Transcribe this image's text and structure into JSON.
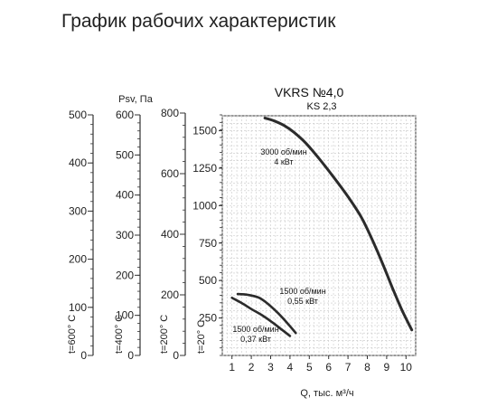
{
  "page": {
    "title": "График рабочих характеристик"
  },
  "chart_data": {
    "type": "line",
    "title": "VKRS №4,0",
    "subtitle": "KS 2,3",
    "xlabel": "Q, тыс. м³/ч",
    "ylabel": "Psv, Па",
    "xlim": [
      0.5,
      10.5
    ],
    "ylim": [
      0,
      1600
    ],
    "x_ticks": [
      1,
      2,
      3,
      4,
      5,
      6,
      7,
      8,
      9,
      10
    ],
    "y_ticks": [
      0,
      250,
      500,
      750,
      1000,
      1250,
      1500
    ],
    "grid": true,
    "series": [
      {
        "name": "3000 об/мин 4 кВт",
        "label_lines": [
          "3000 об/мин",
          "4 кВт"
        ],
        "x": [
          2.7,
          3.2,
          3.7,
          4.2,
          4.8,
          5.5,
          6.2,
          7.0,
          7.7,
          8.3,
          8.8,
          9.3,
          9.8,
          10.3
        ],
        "y": [
          1585,
          1565,
          1535,
          1490,
          1420,
          1315,
          1200,
          1060,
          920,
          760,
          610,
          450,
          300,
          170
        ]
      },
      {
        "name": "1500 об/мин 0,55 кВт",
        "label_lines": [
          "1500 об/мин",
          "0,55 кВт"
        ],
        "x": [
          1.3,
          1.8,
          2.4,
          2.9,
          3.4,
          3.9,
          4.3
        ],
        "y": [
          410,
          405,
          385,
          340,
          280,
          210,
          150
        ]
      },
      {
        "name": "1500 об/мин 0,37 кВт",
        "label_lines": [
          "1500 об/мин",
          "0,37 кВт"
        ],
        "x": [
          1.0,
          1.5,
          2.0,
          2.6,
          3.1,
          3.6,
          4.0
        ],
        "y": [
          385,
          350,
          310,
          265,
          220,
          170,
          130
        ]
      }
    ],
    "extra_axes": [
      {
        "label": "t=600° C",
        "ticks": [
          0,
          100,
          200,
          300,
          400,
          500
        ],
        "max": 500
      },
      {
        "label": "t=400° C",
        "ticks": [
          0,
          100,
          200,
          300,
          400,
          500,
          600
        ],
        "max": 600
      },
      {
        "label": "t=200° C",
        "ticks": [
          0,
          200,
          400,
          600,
          800
        ],
        "max": 800
      },
      {
        "label": "t=20° C",
        "ticks": [],
        "max": 1600
      }
    ]
  }
}
